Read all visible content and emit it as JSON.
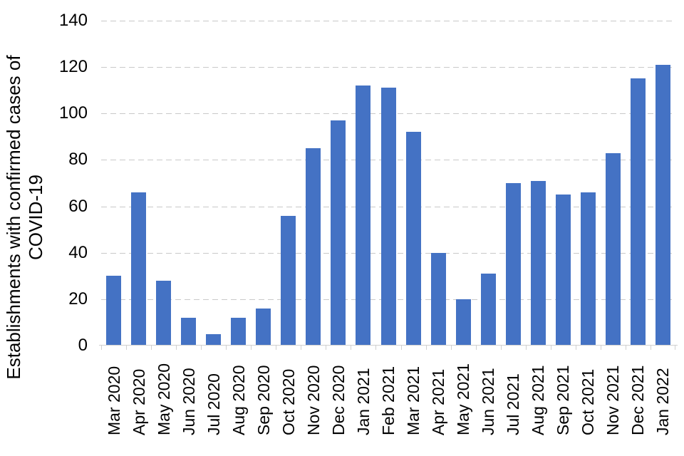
{
  "chart_data": {
    "type": "bar",
    "title": "",
    "xlabel": "",
    "ylabel": "Establishments with confirmed cases of COVID-19",
    "ylabel_lines": [
      "Establishments with confirmed cases of",
      "COVID-19"
    ],
    "categories": [
      "Mar 2020",
      "Apr 2020",
      "May 2020",
      "Jun 2020",
      "Jul 2020",
      "Aug 2020",
      "Sep 2020",
      "Oct 2020",
      "Nov 2020",
      "Dec 2020",
      "Jan 2021",
      "Feb 2021",
      "Mar 2021",
      "Apr 2021",
      "May 2021",
      "Jun 2021",
      "Jul 2021",
      "Aug 2021",
      "Sep 2021",
      "Oct 2021",
      "Nov 2021",
      "Dec 2021",
      "Jan 2022"
    ],
    "values": [
      30,
      66,
      28,
      12,
      5,
      12,
      16,
      56,
      85,
      97,
      112,
      111,
      92,
      40,
      20,
      31,
      70,
      71,
      65,
      66,
      83,
      115,
      121
    ],
    "ylim": [
      0,
      140
    ],
    "yticks": [
      0,
      20,
      40,
      60,
      80,
      100,
      120,
      140
    ],
    "grid": "horizontal-dashed",
    "legend_position": "none",
    "colors": {
      "bar": "#4472C4",
      "gridline": "#C9C9C9",
      "axis_line": "#D0D0D0",
      "text": "#000000",
      "background": "#FFFFFF"
    }
  }
}
